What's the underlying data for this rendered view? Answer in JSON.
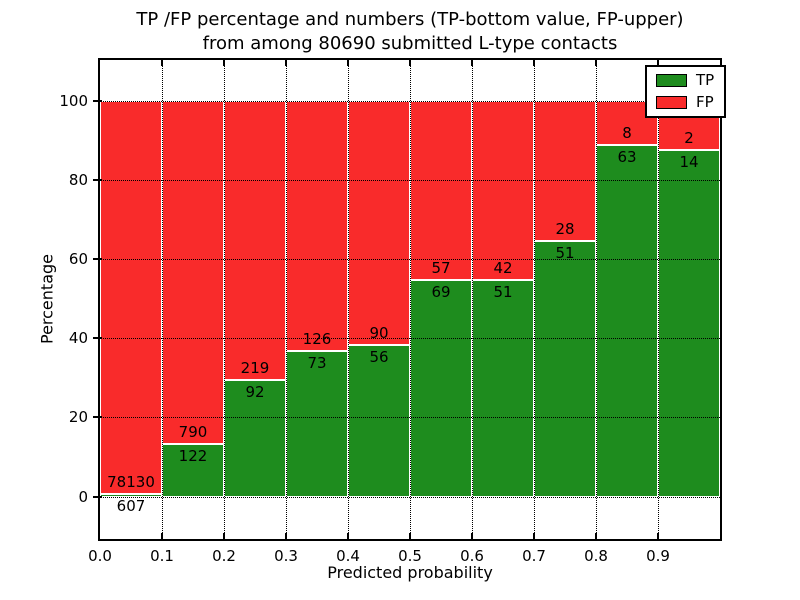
{
  "figure": {
    "title_line1": "TP /FP percentage and numbers (TP-bottom value, FP-upper)",
    "title_line2": "from among 80690 submitted L-type contacts"
  },
  "chart_data": {
    "type": "bar",
    "stacked": true,
    "normalized_to_percent": true,
    "title": "TP /FP percentage and numbers (TP-bottom value, FP-upper)\nfrom among 80690 submitted L-type contacts",
    "total_submitted": 80690,
    "xlabel": "Predicted probability",
    "ylabel": "Percentage",
    "bin_edges": [
      0.0,
      0.1,
      0.2,
      0.3,
      0.4,
      0.5,
      0.6,
      0.7,
      0.8,
      0.9,
      1.0
    ],
    "x_tick_labels": [
      "0.0",
      "0.1",
      "0.2",
      "0.3",
      "0.4",
      "0.5",
      "0.6",
      "0.7",
      "0.8",
      "0.9"
    ],
    "y_tick_values": [
      0,
      20,
      40,
      60,
      80,
      100
    ],
    "xlim": [
      0.0,
      1.0
    ],
    "ylim": [
      -10.7,
      110.3
    ],
    "grid": true,
    "grid_style": "dotted",
    "bar_edge_color": "#ffffff",
    "series": [
      {
        "name": "TP",
        "color": "#1E8C1E",
        "values": [
          607,
          122,
          92,
          73,
          56,
          69,
          51,
          51,
          63,
          14
        ]
      },
      {
        "name": "FP",
        "color": "#F92B2B",
        "values": [
          78130,
          790,
          219,
          126,
          90,
          57,
          42,
          28,
          8,
          2
        ]
      }
    ],
    "tp_percent_heights": [
      0.77,
      13.38,
      29.58,
      36.68,
      38.36,
      54.76,
      54.84,
      64.56,
      88.73,
      87.5
    ],
    "legend": {
      "position": "upper right",
      "entries": [
        {
          "label": "TP",
          "color": "#1E8C1E"
        },
        {
          "label": "FP",
          "color": "#F92B2B"
        }
      ]
    }
  }
}
